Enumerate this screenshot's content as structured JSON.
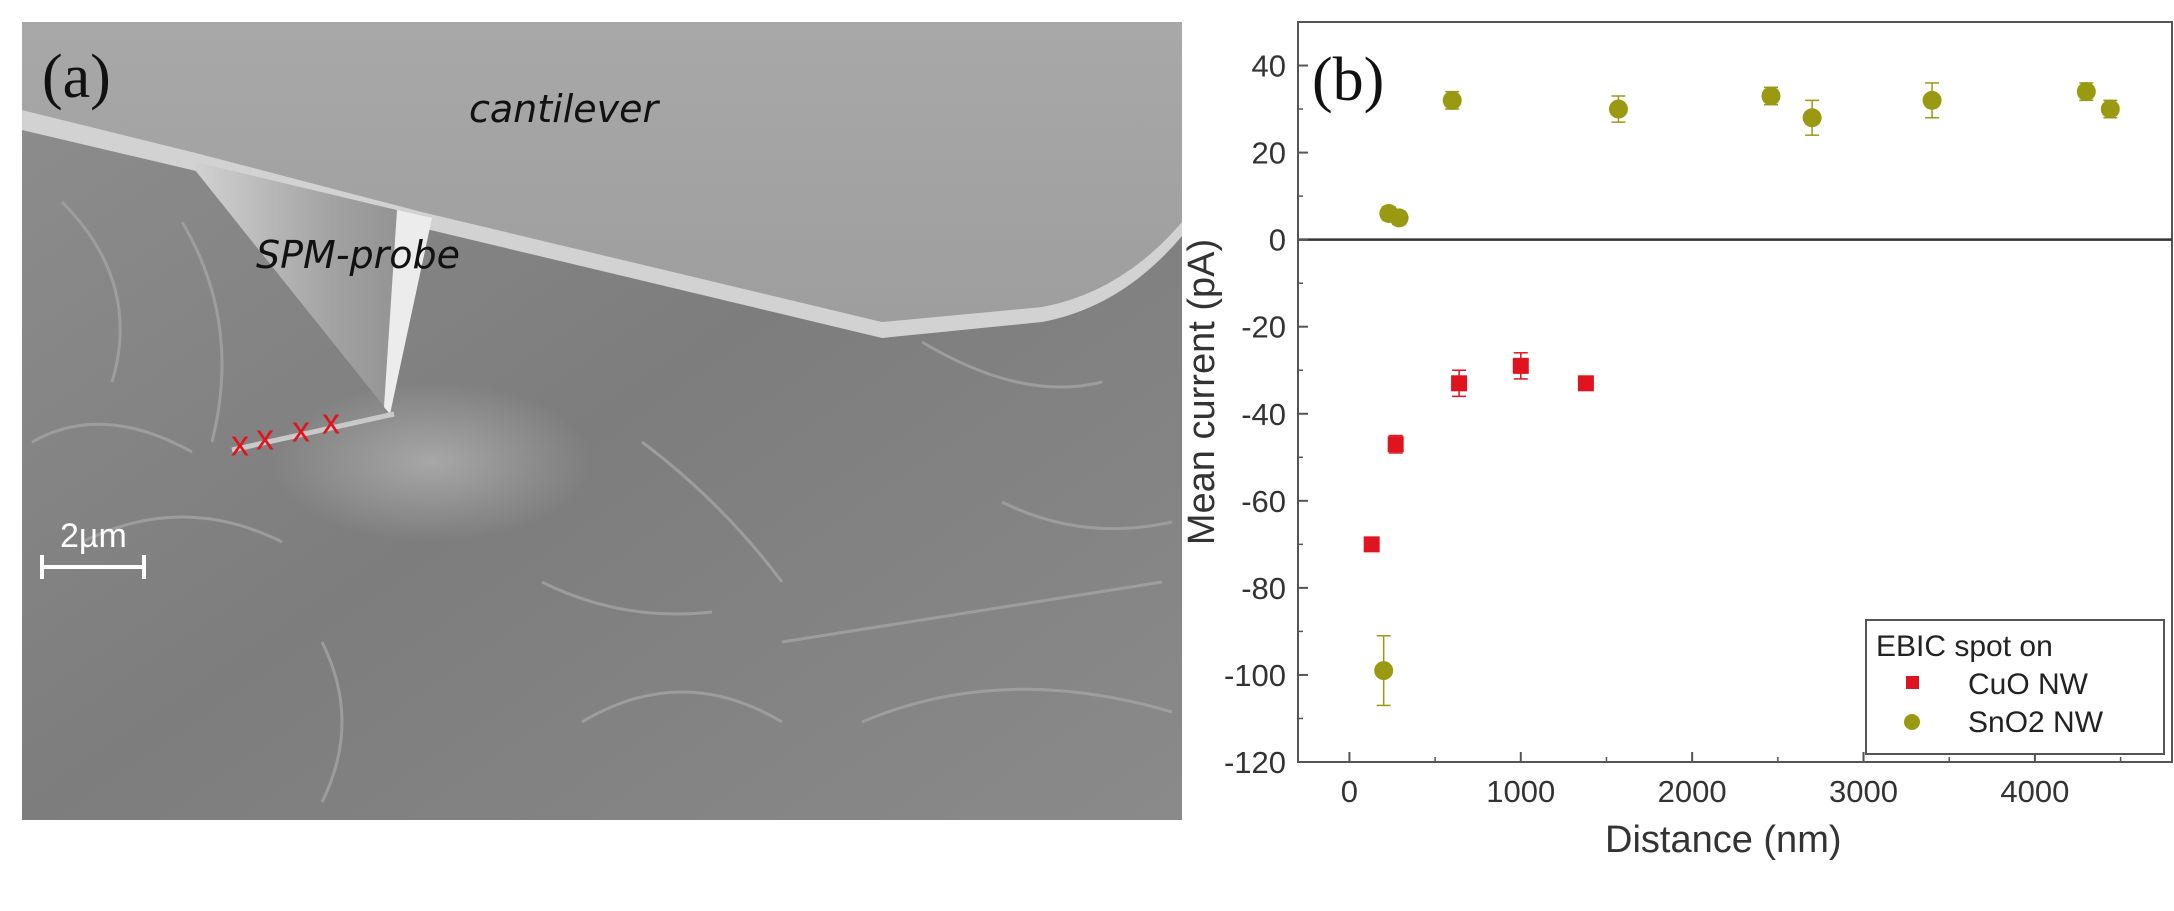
{
  "panel_a": {
    "label": "(a)",
    "cantilever_label": "cantilever",
    "probe_label": "SPM-probe",
    "scale_bar_label": "2µm",
    "marker_symbol": "x",
    "marker_color": "#e0141e",
    "marker_count": 4
  },
  "chart_data": {
    "type": "scatter",
    "panel_label": "(b)",
    "xlabel": "Distance (nm)",
    "ylabel": "Mean current (pA)",
    "xlim": [
      -300,
      4800
    ],
    "ylim": [
      -120,
      50
    ],
    "xticks": [
      0,
      1000,
      2000,
      3000,
      4000
    ],
    "yticks": [
      -120,
      -100,
      -80,
      -60,
      -40,
      -20,
      0,
      20,
      40
    ],
    "zero_line": true,
    "grid": false,
    "legend": {
      "title": "EBIC spot on",
      "placement": "bottom-right"
    },
    "series": [
      {
        "name": "CuO NW",
        "marker": "square",
        "color": "#e0141e",
        "points": [
          {
            "x": 130,
            "y": -70,
            "err": 1.5
          },
          {
            "x": 270,
            "y": -47,
            "err": 2
          },
          {
            "x": 640,
            "y": -33,
            "err": 3
          },
          {
            "x": 1000,
            "y": -29,
            "err": 3
          },
          {
            "x": 1380,
            "y": -33,
            "err": 1.5
          }
        ]
      },
      {
        "name": "SnO2 NW",
        "marker": "circle",
        "color": "#9a9a12",
        "points": [
          {
            "x": 200,
            "y": -99,
            "err": 8
          },
          {
            "x": 230,
            "y": 6,
            "err": 1.5
          },
          {
            "x": 290,
            "y": 5,
            "err": 1.5
          },
          {
            "x": 600,
            "y": 32,
            "err": 2
          },
          {
            "x": 1570,
            "y": 30,
            "err": 3
          },
          {
            "x": 2460,
            "y": 33,
            "err": 2
          },
          {
            "x": 2700,
            "y": 28,
            "err": 4
          },
          {
            "x": 3400,
            "y": 32,
            "err": 4
          },
          {
            "x": 4300,
            "y": 34,
            "err": 2
          },
          {
            "x": 4440,
            "y": 30,
            "err": 2
          }
        ]
      }
    ]
  }
}
